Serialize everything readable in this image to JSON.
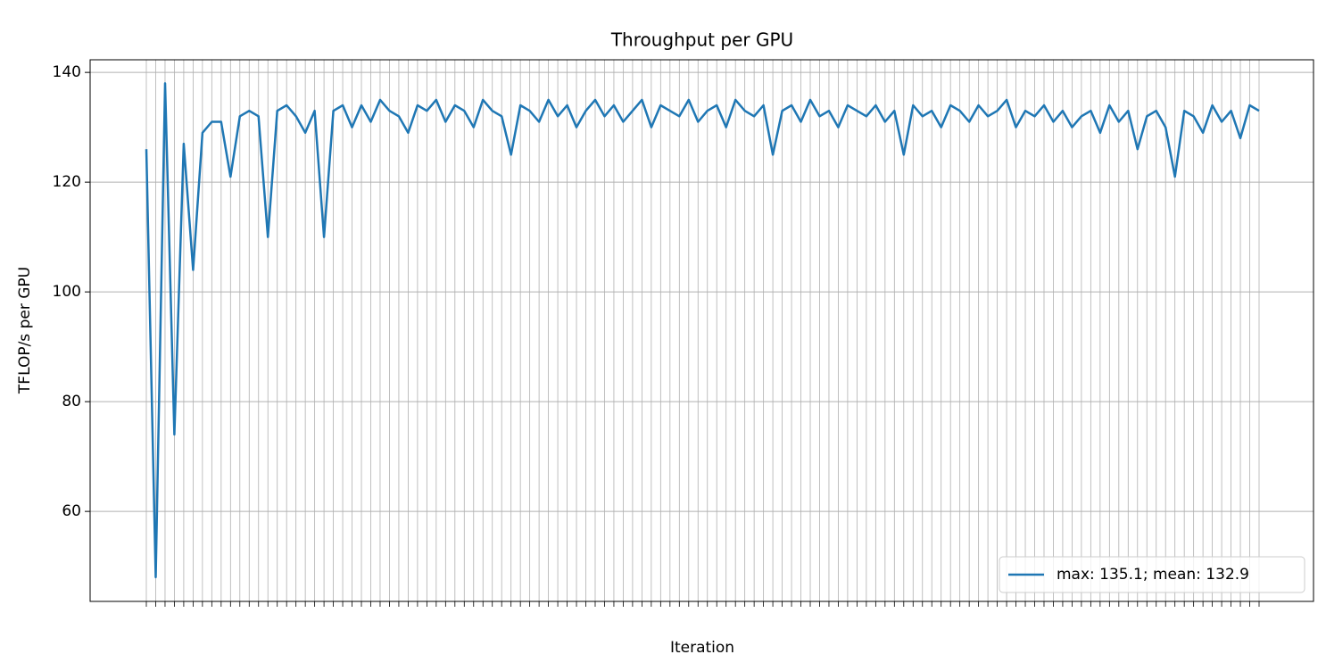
{
  "chart_data": {
    "type": "line",
    "title": "Throughput per GPU",
    "x_label": "Iteration",
    "y_label": "TFLOP/s per GPU",
    "categories": [
      null,
      null,
      null,
      null,
      null,
      null,
      null,
      null,
      null,
      null,
      null,
      null,
      null,
      null,
      null,
      null,
      null,
      null,
      null,
      null,
      null,
      null,
      null,
      null,
      null,
      null,
      null,
      null,
      null,
      null,
      null,
      null,
      null,
      null,
      null,
      null,
      null,
      null,
      null,
      null,
      null,
      null,
      null,
      null,
      null,
      null,
      null,
      null,
      null,
      null,
      null,
      null,
      null,
      null,
      null,
      null,
      null,
      null,
      null,
      null,
      null,
      null,
      null,
      null,
      null,
      null,
      null,
      null,
      null,
      null,
      null,
      null,
      null,
      null,
      null,
      null,
      null,
      null,
      null,
      null,
      null,
      null,
      null,
      null,
      null,
      null,
      null,
      null,
      null,
      null,
      null,
      null,
      null,
      null,
      null,
      null,
      null,
      null,
      null,
      null,
      null,
      null,
      null,
      null,
      null,
      null,
      null,
      null,
      null,
      null,
      null,
      null,
      null,
      null,
      null,
      null,
      null,
      null,
      null,
      null
    ],
    "series": [
      {
        "name": "max: 135.1; mean: 132.9",
        "color": "#1f77b4",
        "values": [
          126,
          48,
          138,
          74,
          127,
          104,
          129,
          131,
          131,
          121,
          132,
          133,
          132,
          110,
          133,
          134,
          132,
          129,
          133,
          110,
          133,
          134,
          130,
          134,
          131,
          135,
          133,
          132,
          129,
          134,
          133,
          135,
          131,
          134,
          133,
          130,
          135,
          133,
          132,
          125,
          134,
          133,
          131,
          135,
          132,
          134,
          130,
          133,
          135,
          132,
          134,
          131,
          133,
          135,
          130,
          134,
          133,
          132,
          135,
          131,
          133,
          134,
          130,
          135,
          133,
          132,
          134,
          125,
          133,
          134,
          131,
          135,
          132,
          133,
          130,
          134,
          133,
          132,
          134,
          131,
          133,
          125,
          134,
          132,
          133,
          130,
          134,
          133,
          131,
          134,
          132,
          133,
          135,
          130,
          133,
          132,
          134,
          131,
          133,
          130,
          132,
          133,
          129,
          134,
          131,
          133,
          126,
          132,
          133,
          130,
          121,
          133,
          132,
          129,
          134,
          131,
          133,
          128,
          134,
          133
        ]
      }
    ],
    "ylim": [
      43.6,
      142.3
    ],
    "yticks": [
      60,
      80,
      100,
      120,
      140
    ],
    "grid": true,
    "legend": "lower right"
  }
}
